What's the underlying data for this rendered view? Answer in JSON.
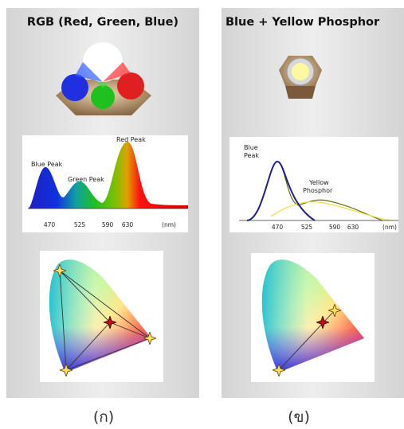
{
  "panels": [
    {
      "title": "RGB (Red, Green, Blue)",
      "spectrum": {
        "labels": [
          [
            "Blue Peak"
          ],
          [
            "Green Peak"
          ],
          [
            "Red Peak"
          ]
        ],
        "ticks": [
          470,
          525,
          590,
          630
        ],
        "unit": "(nm)"
      },
      "caption": "(ก)"
    },
    {
      "title": "Blue + Yellow Phosphor",
      "spectrum": {
        "labels": [
          [
            "Blue",
            "Peak"
          ],
          [
            "Yellow",
            "Phosphor"
          ]
        ],
        "ticks": [
          470,
          525,
          590,
          630
        ],
        "unit": "(nm)"
      },
      "caption": "(ข)"
    }
  ]
}
